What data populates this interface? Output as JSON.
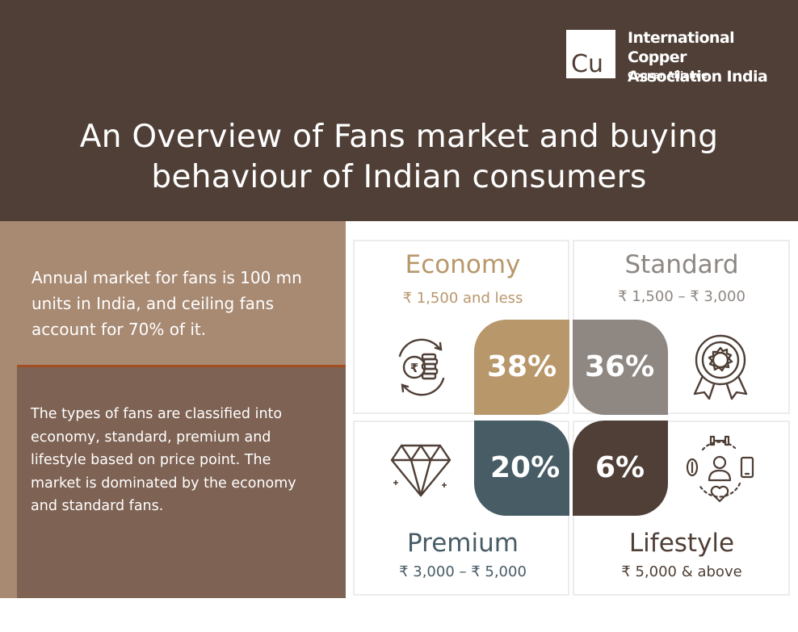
{
  "logo": {
    "symbol": "Cu",
    "org_line1": "International Copper",
    "org_line2": "Association India",
    "tagline": "Copper Alliance"
  },
  "title": {
    "line1": "An Overview of Fans market and buying",
    "line2": "behaviour of Indian consumers"
  },
  "left": {
    "market_text": "Annual market for fans is 100 mn units in India, and ceiling fans account for 70% of it.",
    "types_text": "The types of fans are classified into economy, standard, premium and lifestyle based on price point. The market is dominated by the economy and standard fans."
  },
  "segments": {
    "economy": {
      "name": "Economy",
      "price": "₹ 1,500 and less",
      "share": "38%",
      "color": "#b8976b",
      "icon": "coins-cycle-icon"
    },
    "standard": {
      "name": "Standard",
      "price": "₹ 1,500 – ₹ 3,000",
      "share": "36%",
      "color": "#8e8782",
      "icon": "award-badge-icon"
    },
    "premium": {
      "name": "Premium",
      "price": "₹ 3,000 – ₹ 5,000",
      "share": "20%",
      "color": "#485c66",
      "icon": "diamond-icon"
    },
    "lifestyle": {
      "name": "Lifestyle",
      "price": "₹ 5,000 & above",
      "share": "6%",
      "color": "#4f3f36",
      "icon": "lifestyle-icon"
    }
  }
}
